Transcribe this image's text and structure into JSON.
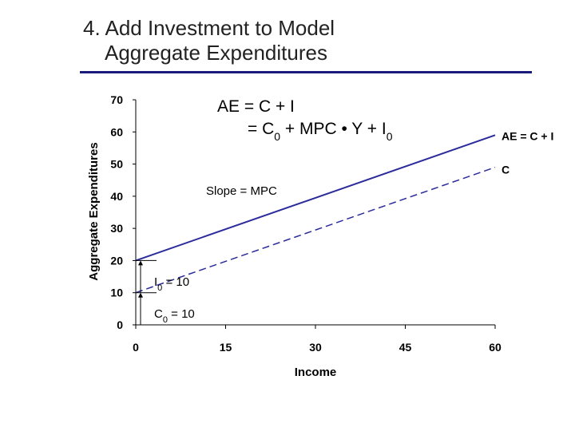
{
  "slide": {
    "title_line1": "4. Add Investment to Model",
    "title_line2": "Aggregate Expenditures"
  },
  "colors": {
    "accent": "#1a1a7a",
    "series": "#2b2b9b"
  },
  "chart_data": {
    "type": "line",
    "xlabel": "Income",
    "ylabel": "Aggregate Expenditures",
    "xlim": [
      0,
      60
    ],
    "ylim": [
      0,
      70
    ],
    "xticks": [
      "0",
      "15",
      "30",
      "45",
      "60"
    ],
    "yticks": [
      "0",
      "10",
      "20",
      "30",
      "40",
      "50",
      "60",
      "70"
    ],
    "grid": false,
    "series": [
      {
        "name": "AE = C + I",
        "style": "solid",
        "x": [
          0,
          60
        ],
        "y": [
          20,
          59
        ]
      },
      {
        "name": "C",
        "style": "dashed",
        "x": [
          0,
          60
        ],
        "y": [
          10,
          49
        ]
      }
    ],
    "annotations": {
      "equation_line1": "AE = C + I",
      "equation_line2_prefix": "= C",
      "equation_line2_sub1": "0",
      "equation_line2_mid": " + MPC • Y + I",
      "equation_line2_sub2": "0",
      "slope": "Slope = MPC",
      "i0_main": "I",
      "i0_sub": "0",
      "i0_rest": " = 10",
      "c0_main": "C",
      "c0_sub": "0",
      "c0_rest": " = 10"
    }
  }
}
